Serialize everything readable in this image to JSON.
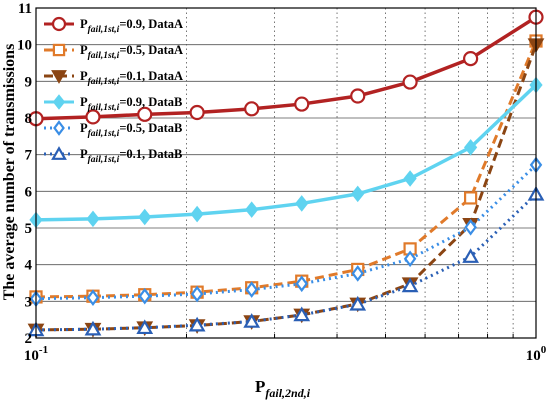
{
  "chart_data": {
    "type": "line",
    "xscale": "log",
    "xlim": [
      0.1,
      1
    ],
    "ylim": [
      2,
      11
    ],
    "yticks": [
      2,
      3,
      4,
      5,
      6,
      7,
      8,
      9,
      10,
      11
    ],
    "xtick_labels": [
      {
        "value": 0.1,
        "base": "10",
        "exp": "-1"
      },
      {
        "value": 1,
        "base": "10",
        "exp": "0"
      }
    ],
    "ylabel": "The average number of transmissions",
    "xlabel": {
      "base": "P",
      "sub": "fail,2nd,i"
    },
    "grid": "dotted",
    "legend_position": "top-left",
    "x": [
      0.1,
      0.13,
      0.165,
      0.21,
      0.27,
      0.34,
      0.44,
      0.56,
      0.74,
      1.0
    ],
    "series": [
      {
        "name_base": "P",
        "name_sub": "fail,1st,i",
        "name_suffix": "=0.9, DataA",
        "color": "#b22222",
        "dash": "solid",
        "marker": "circle-open",
        "values": [
          7.98,
          8.03,
          8.1,
          8.15,
          8.25,
          8.38,
          8.6,
          8.98,
          9.62,
          10.75
        ]
      },
      {
        "name_base": "P",
        "name_sub": "fail,1st,i",
        "name_suffix": "=0.5, DataA",
        "color": "#e07a2a",
        "dash": "dashed",
        "marker": "square-open",
        "values": [
          3.12,
          3.14,
          3.18,
          3.25,
          3.37,
          3.55,
          3.87,
          4.43,
          5.82,
          10.1
        ]
      },
      {
        "name_base": "P",
        "name_sub": "fail,1st,i",
        "name_suffix": "=0.1, DataA",
        "color": "#8b4513",
        "dash": "dashed",
        "marker": "triangle-down",
        "values": [
          2.22,
          2.24,
          2.28,
          2.34,
          2.45,
          2.63,
          2.93,
          3.48,
          5.1,
          10.0
        ]
      },
      {
        "name_base": "P",
        "name_sub": "fail,1st,i",
        "name_suffix": "=0.9, DataB",
        "color": "#5fd3f0",
        "dash": "solid",
        "marker": "diamond-filled",
        "values": [
          5.22,
          5.25,
          5.3,
          5.38,
          5.5,
          5.67,
          5.93,
          6.35,
          7.2,
          8.9
        ]
      },
      {
        "name_base": "P",
        "name_sub": "fail,1st,i",
        "name_suffix": "=0.5, DataB",
        "color": "#3a8ee6",
        "dash": "dotted",
        "marker": "diamond-open",
        "values": [
          3.07,
          3.1,
          3.14,
          3.2,
          3.32,
          3.48,
          3.76,
          4.16,
          5.02,
          6.72
        ]
      },
      {
        "name_base": "P",
        "name_sub": "fail,1st,i",
        "name_suffix": "=0.1, DataB",
        "color": "#2a5fb5",
        "dash": "dotted",
        "marker": "triangle-up-open",
        "values": [
          2.22,
          2.24,
          2.28,
          2.35,
          2.45,
          2.63,
          2.92,
          3.42,
          4.22,
          5.92
        ]
      }
    ]
  }
}
